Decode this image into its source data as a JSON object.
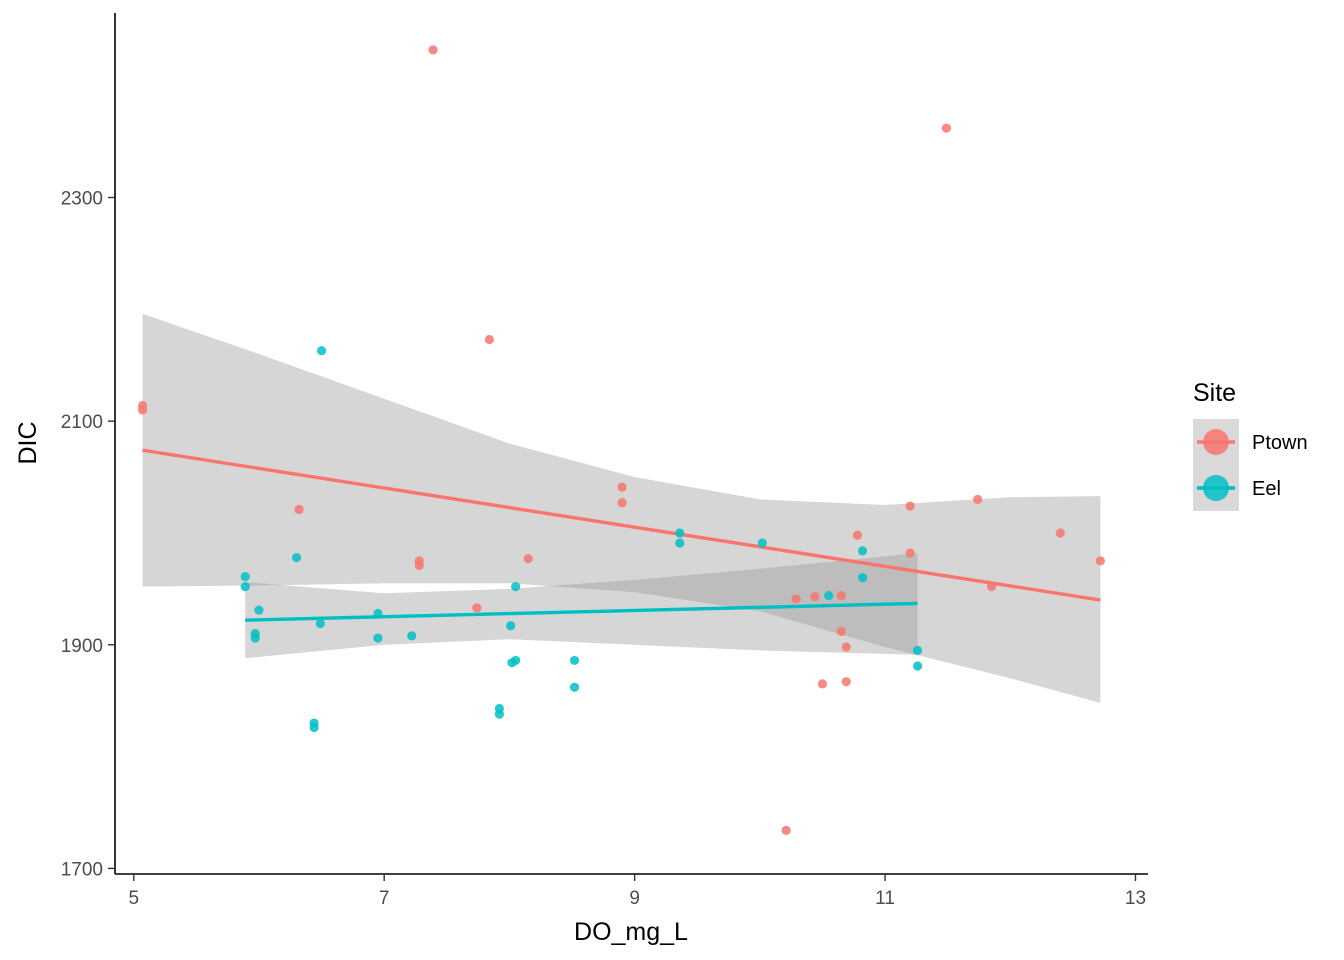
{
  "chart_data": {
    "type": "scatter",
    "title": "",
    "xlabel": "DO_mg_L",
    "ylabel": "DIC",
    "xlim": [
      4.85,
      13.1
    ],
    "ylim": [
      1695,
      2465
    ],
    "x_ticks": [
      5,
      7,
      9,
      11,
      13
    ],
    "x_tick_labels": [
      "5",
      "7",
      "9",
      "11",
      "13"
    ],
    "y_ticks": [
      1700,
      1900,
      2100,
      2300
    ],
    "y_tick_labels": [
      "1700",
      "1900",
      "2100",
      "2300"
    ],
    "grid": false,
    "legend": {
      "title": "Site",
      "placement": "right"
    },
    "series": [
      {
        "name": "Ptown",
        "color": "#F8766D",
        "points": [
          [
            5.07,
            2114
          ],
          [
            5.07,
            2110
          ],
          [
            6.32,
            2021
          ],
          [
            7.28,
            1975
          ],
          [
            7.28,
            1971
          ],
          [
            7.39,
            2432
          ],
          [
            7.74,
            1933
          ],
          [
            7.84,
            2173
          ],
          [
            8.15,
            1977
          ],
          [
            8.9,
            2041
          ],
          [
            8.9,
            2027
          ],
          [
            10.21,
            1734
          ],
          [
            10.29,
            1941
          ],
          [
            10.44,
            1943
          ],
          [
            10.5,
            1865
          ],
          [
            10.65,
            1944
          ],
          [
            10.65,
            1912
          ],
          [
            10.69,
            1898
          ],
          [
            10.69,
            1867
          ],
          [
            10.78,
            1998
          ],
          [
            11.2,
            2024
          ],
          [
            11.2,
            1982
          ],
          [
            11.49,
            2362
          ],
          [
            11.74,
            2030
          ],
          [
            11.85,
            1952
          ],
          [
            12.4,
            2000
          ],
          [
            12.72,
            1975
          ]
        ],
        "fit": {
          "x": [
            5.07,
            12.72
          ],
          "y": [
            2074,
            1940
          ]
        },
        "ci": {
          "x": [
            5.07,
            6.0,
            7.0,
            8.0,
            9.0,
            10.0,
            11.0,
            12.0,
            12.72
          ],
          "lower": [
            1952,
            1953,
            1955,
            1955,
            1947,
            1930,
            1898,
            1870,
            1848
          ],
          "upper": [
            2196,
            2160,
            2120,
            2080,
            2050,
            2030,
            2025,
            2032,
            2033
          ]
        }
      },
      {
        "name": "Eel",
        "color": "#00BFC4",
        "points": [
          [
            5.89,
            1961
          ],
          [
            5.89,
            1952
          ],
          [
            5.97,
            1910
          ],
          [
            5.97,
            1906
          ],
          [
            6.0,
            1931
          ],
          [
            6.3,
            1978
          ],
          [
            6.44,
            1830
          ],
          [
            6.44,
            1826
          ],
          [
            6.49,
            1919
          ],
          [
            6.5,
            2163
          ],
          [
            6.95,
            1928
          ],
          [
            6.95,
            1906
          ],
          [
            7.22,
            1908
          ],
          [
            7.92,
            1843
          ],
          [
            7.92,
            1838
          ],
          [
            8.01,
            1917
          ],
          [
            8.02,
            1884
          ],
          [
            8.05,
            1886
          ],
          [
            8.05,
            1952
          ],
          [
            8.52,
            1886
          ],
          [
            8.52,
            1862
          ],
          [
            9.36,
            2000
          ],
          [
            9.36,
            1991
          ],
          [
            10.02,
            1991
          ],
          [
            10.55,
            1944
          ],
          [
            10.82,
            1984
          ],
          [
            10.82,
            1960
          ],
          [
            11.26,
            1895
          ],
          [
            11.26,
            1881
          ]
        ],
        "fit": {
          "x": [
            5.89,
            11.26
          ],
          "y": [
            1922,
            1937
          ]
        },
        "ci": {
          "x": [
            5.89,
            7.0,
            8.0,
            9.0,
            10.0,
            11.26
          ],
          "lower": [
            1888,
            1900,
            1905,
            1900,
            1895,
            1891
          ],
          "upper": [
            1956,
            1946,
            1950,
            1958,
            1968,
            1982
          ]
        }
      }
    ]
  }
}
